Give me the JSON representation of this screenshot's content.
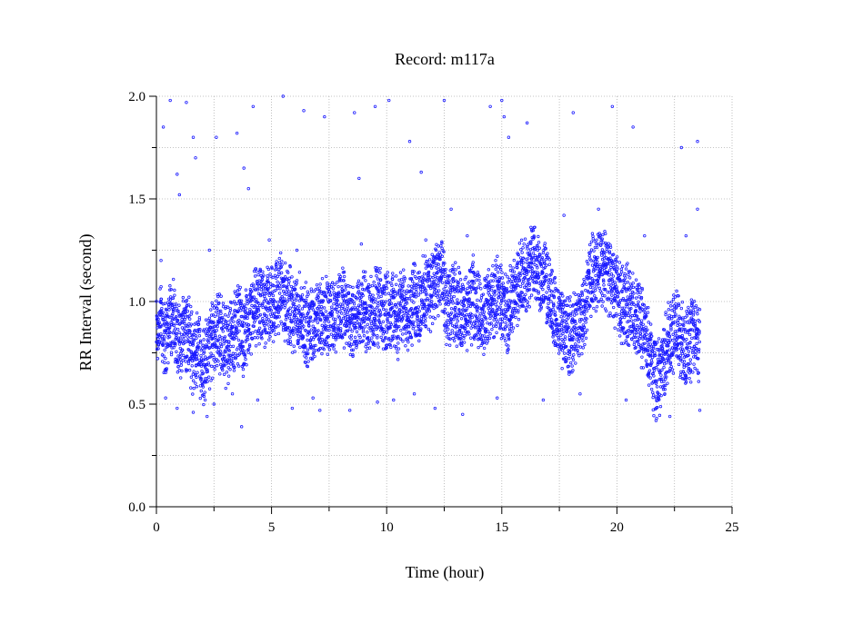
{
  "chart_data": {
    "type": "scatter",
    "title": "Record:  m117a",
    "xlabel": "Time (hour)",
    "ylabel": "RR Interval (second)",
    "xlim": [
      0,
      25
    ],
    "ylim": [
      0.0,
      2.0
    ],
    "x_major_ticks": [
      0,
      5,
      10,
      15,
      20,
      25
    ],
    "x_tick_labels": [
      "0",
      "5",
      "10",
      "15",
      "20",
      "25"
    ],
    "x_minor_ticks": [
      2.5,
      7.5,
      12.5,
      17.5,
      22.5
    ],
    "y_major_ticks": [
      0.0,
      0.5,
      1.0,
      1.5,
      2.0
    ],
    "y_tick_labels": [
      "0.0",
      "0.5",
      "1.0",
      "1.5",
      "2.0"
    ],
    "y_minor_ticks": [
      0.25,
      0.75,
      1.25,
      1.75
    ],
    "grid": true,
    "marker": "open circle",
    "colors": {
      "points": "#1a1aff",
      "grid": "#b0b0b0",
      "axes": "#000000"
    },
    "series": [
      {
        "description_of_trend": "RR intervals of a ~23.6 hour ECG recording; dense band around 0.7-1.1 s, higher (~1.15-1.2 s) during hours 16-21, scattered outliers 0.4-2.0 s",
        "points": [
          [
            0.0,
            0.85
          ],
          [
            0.2,
            0.92
          ],
          [
            0.4,
            0.8
          ],
          [
            0.6,
            0.95
          ],
          [
            0.8,
            0.88
          ],
          [
            1.0,
            0.76
          ],
          [
            1.2,
            0.9
          ],
          [
            1.4,
            0.84
          ],
          [
            1.6,
            0.72
          ],
          [
            1.8,
            0.78
          ],
          [
            2.0,
            0.68
          ],
          [
            2.2,
            0.74
          ],
          [
            2.4,
            0.8
          ],
          [
            2.6,
            0.88
          ],
          [
            2.8,
            0.84
          ],
          [
            3.0,
            0.78
          ],
          [
            3.2,
            0.82
          ],
          [
            3.4,
            0.86
          ],
          [
            3.6,
            0.9
          ],
          [
            3.8,
            0.82
          ],
          [
            4.0,
            0.88
          ],
          [
            4.2,
            0.94
          ],
          [
            4.4,
            0.98
          ],
          [
            4.6,
            0.96
          ],
          [
            4.8,
            1.0
          ],
          [
            5.0,
            0.98
          ],
          [
            5.2,
            1.02
          ],
          [
            5.4,
            1.05
          ],
          [
            5.6,
            1.0
          ],
          [
            5.8,
            0.97
          ],
          [
            6.0,
            0.93
          ],
          [
            6.2,
            0.95
          ],
          [
            6.4,
            0.9
          ],
          [
            6.6,
            0.87
          ],
          [
            6.8,
            0.92
          ],
          [
            7.0,
            0.9
          ],
          [
            7.2,
            0.94
          ],
          [
            7.4,
            0.92
          ],
          [
            7.6,
            0.96
          ],
          [
            7.8,
            0.93
          ],
          [
            8.0,
            0.95
          ],
          [
            8.2,
            0.98
          ],
          [
            8.4,
            0.92
          ],
          [
            8.6,
            0.9
          ],
          [
            8.8,
            0.94
          ],
          [
            9.0,
            0.96
          ],
          [
            9.2,
            0.93
          ],
          [
            9.4,
            0.95
          ],
          [
            9.6,
            0.97
          ],
          [
            9.8,
            0.94
          ],
          [
            10.0,
            0.96
          ],
          [
            10.2,
            0.98
          ],
          [
            10.4,
            0.92
          ],
          [
            10.6,
            0.95
          ],
          [
            10.8,
            0.98
          ],
          [
            11.0,
            0.96
          ],
          [
            11.2,
            1.0
          ],
          [
            11.4,
            0.98
          ],
          [
            11.6,
            1.02
          ],
          [
            11.8,
            1.05
          ],
          [
            12.0,
            1.08
          ],
          [
            12.2,
            1.1
          ],
          [
            12.4,
            1.12
          ],
          [
            12.6,
            0.95
          ],
          [
            12.8,
            0.98
          ],
          [
            13.0,
            1.0
          ],
          [
            13.2,
            0.96
          ],
          [
            13.4,
            0.92
          ],
          [
            13.6,
            0.98
          ],
          [
            13.8,
            1.02
          ],
          [
            14.0,
            0.95
          ],
          [
            14.2,
            0.92
          ],
          [
            14.4,
            0.96
          ],
          [
            14.6,
            1.0
          ],
          [
            14.8,
            1.02
          ],
          [
            15.0,
            1.0
          ],
          [
            15.2,
            0.95
          ],
          [
            15.4,
            0.98
          ],
          [
            15.6,
            1.05
          ],
          [
            15.8,
            1.1
          ],
          [
            16.0,
            1.12
          ],
          [
            16.2,
            1.15
          ],
          [
            16.4,
            1.18
          ],
          [
            16.6,
            1.15
          ],
          [
            16.8,
            1.12
          ],
          [
            17.0,
            1.08
          ],
          [
            17.2,
            0.95
          ],
          [
            17.4,
            0.9
          ],
          [
            17.6,
            0.88
          ],
          [
            17.8,
            0.85
          ],
          [
            18.0,
            0.82
          ],
          [
            18.2,
            0.86
          ],
          [
            18.4,
            0.92
          ],
          [
            18.6,
            0.95
          ],
          [
            18.8,
            1.12
          ],
          [
            19.0,
            1.15
          ],
          [
            19.2,
            1.18
          ],
          [
            19.4,
            1.16
          ],
          [
            19.6,
            1.14
          ],
          [
            19.8,
            1.1
          ],
          [
            20.0,
            1.05
          ],
          [
            20.2,
            1.0
          ],
          [
            20.4,
            0.98
          ],
          [
            20.6,
            0.95
          ],
          [
            20.8,
            0.92
          ],
          [
            21.0,
            0.9
          ],
          [
            21.2,
            0.85
          ],
          [
            21.4,
            0.75
          ],
          [
            21.6,
            0.65
          ],
          [
            21.8,
            0.62
          ],
          [
            22.0,
            0.7
          ],
          [
            22.2,
            0.8
          ],
          [
            22.4,
            0.85
          ],
          [
            22.6,
            0.88
          ],
          [
            22.8,
            0.82
          ],
          [
            23.0,
            0.78
          ],
          [
            23.2,
            0.8
          ],
          [
            23.4,
            0.82
          ],
          [
            23.6,
            0.8
          ]
        ]
      }
    ],
    "outliers": [
      [
        0.3,
        1.85
      ],
      [
        0.6,
        1.98
      ],
      [
        1.3,
        1.97
      ],
      [
        1.6,
        1.8
      ],
      [
        1.7,
        1.7
      ],
      [
        2.6,
        1.8
      ],
      [
        3.5,
        1.82
      ],
      [
        4.2,
        1.95
      ],
      [
        5.5,
        2.0
      ],
      [
        6.4,
        1.93
      ],
      [
        7.3,
        1.9
      ],
      [
        8.6,
        1.92
      ],
      [
        9.5,
        1.95
      ],
      [
        10.1,
        1.98
      ],
      [
        11.0,
        1.78
      ],
      [
        12.5,
        1.98
      ],
      [
        14.5,
        1.95
      ],
      [
        15.0,
        1.98
      ],
      [
        15.1,
        1.9
      ],
      [
        15.3,
        1.8
      ],
      [
        16.1,
        1.87
      ],
      [
        18.1,
        1.92
      ],
      [
        19.8,
        1.95
      ],
      [
        20.7,
        1.85
      ],
      [
        22.8,
        1.75
      ],
      [
        23.5,
        1.78
      ],
      [
        0.9,
        1.62
      ],
      [
        3.8,
        1.65
      ],
      [
        4.0,
        1.55
      ],
      [
        8.8,
        1.6
      ],
      [
        11.5,
        1.63
      ],
      [
        1.0,
        1.52
      ],
      [
        0.4,
        0.53
      ],
      [
        0.9,
        0.48
      ],
      [
        1.6,
        0.46
      ],
      [
        2.5,
        0.5
      ],
      [
        3.3,
        0.55
      ],
      [
        3.7,
        0.39
      ],
      [
        4.4,
        0.52
      ],
      [
        5.9,
        0.48
      ],
      [
        7.1,
        0.47
      ],
      [
        8.4,
        0.47
      ],
      [
        9.6,
        0.51
      ],
      [
        10.3,
        0.52
      ],
      [
        11.2,
        0.55
      ],
      [
        12.1,
        0.48
      ],
      [
        13.3,
        0.45
      ],
      [
        14.8,
        0.53
      ],
      [
        16.8,
        0.52
      ],
      [
        18.4,
        0.55
      ],
      [
        20.4,
        0.52
      ],
      [
        21.7,
        0.42
      ],
      [
        22.3,
        0.44
      ],
      [
        23.6,
        0.47
      ],
      [
        2.2,
        0.44
      ],
      [
        6.8,
        0.53
      ],
      [
        0.2,
        1.2
      ],
      [
        2.3,
        1.25
      ],
      [
        4.9,
        1.3
      ],
      [
        6.1,
        1.25
      ],
      [
        8.9,
        1.28
      ],
      [
        11.7,
        1.3
      ],
      [
        13.5,
        1.32
      ],
      [
        16.3,
        1.35
      ],
      [
        19.5,
        1.33
      ],
      [
        21.2,
        1.32
      ],
      [
        23.0,
        1.32
      ],
      [
        23.5,
        1.45
      ],
      [
        12.8,
        1.45
      ],
      [
        17.7,
        1.42
      ],
      [
        19.2,
        1.45
      ]
    ]
  }
}
